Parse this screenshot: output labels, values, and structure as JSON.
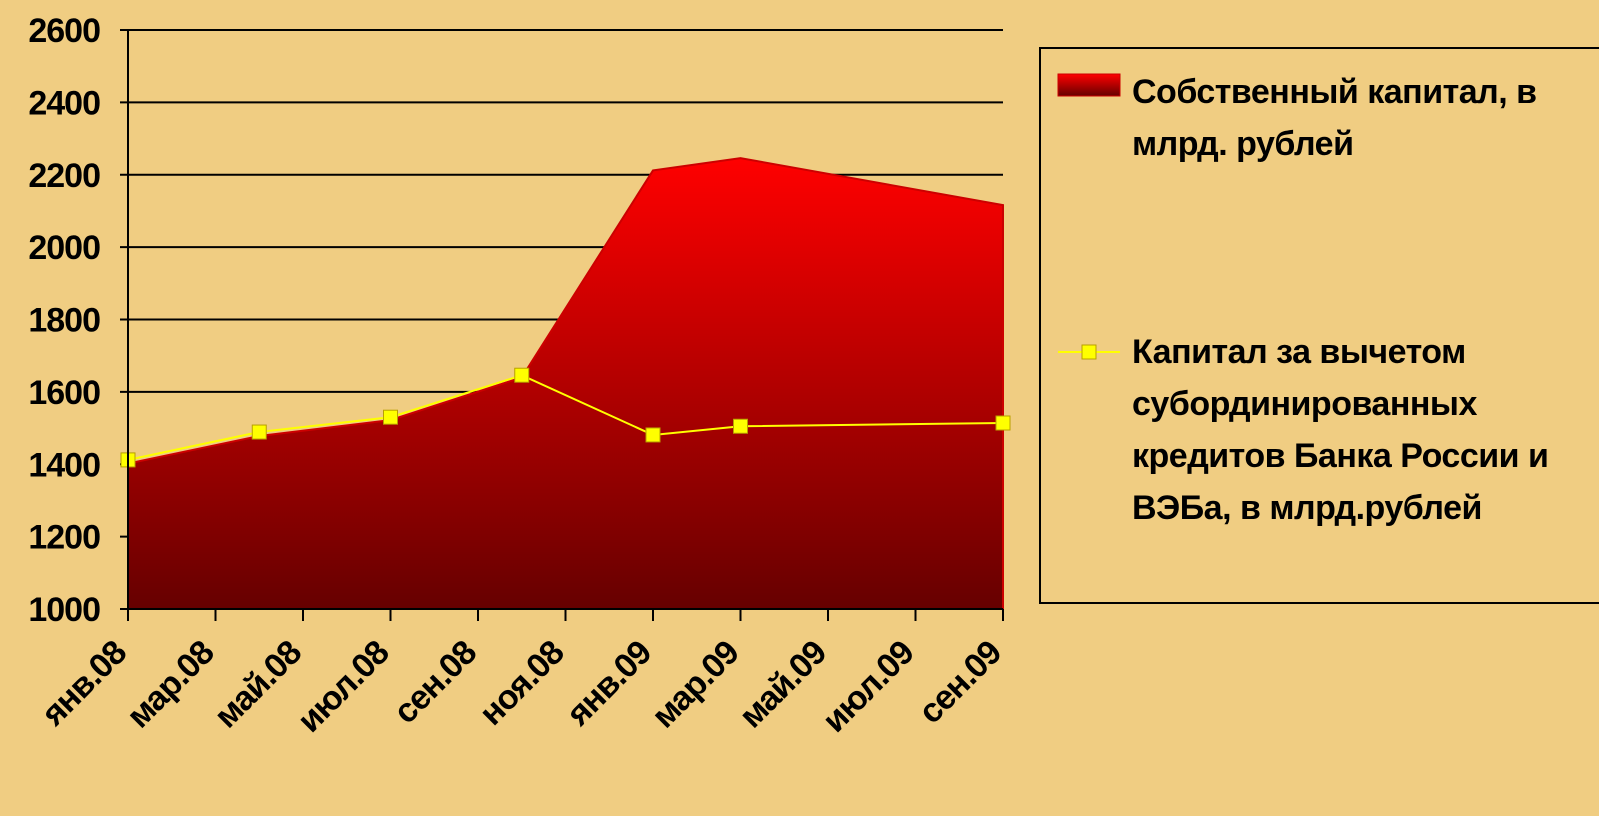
{
  "chart_data": {
    "type": "area-line",
    "x": [
      0,
      3,
      6,
      9,
      12,
      14,
      20
    ],
    "xlim": [
      0,
      20
    ],
    "xticks": [
      {
        "value": 0,
        "label": "янв.08"
      },
      {
        "value": 2,
        "label": "мар.08"
      },
      {
        "value": 4,
        "label": "май.08"
      },
      {
        "value": 6,
        "label": "июл.08"
      },
      {
        "value": 8,
        "label": "сен.08"
      },
      {
        "value": 10,
        "label": "ноя.08"
      },
      {
        "value": 12,
        "label": "янв.09"
      },
      {
        "value": 14,
        "label": "мар.09"
      },
      {
        "value": 16,
        "label": "май.09"
      },
      {
        "value": 18,
        "label": "июл.09"
      },
      {
        "value": 20,
        "label": "сен.09"
      }
    ],
    "ylim": [
      1000,
      2600
    ],
    "yticks": [
      1000,
      1200,
      1400,
      1600,
      1800,
      2000,
      2200,
      2400,
      2600
    ],
    "grid": true,
    "legend": "right",
    "series": [
      {
        "name": "Собственный капитал, в млрд. рублей",
        "type": "area",
        "color": "#ff0000",
        "values": [
          1402,
          1478,
          1522,
          1640,
          2212,
          2246,
          2116
        ]
      },
      {
        "name": "Капитал за вычетом субординированных кредитов Банка России и ВЭБа, в млрд.рублей",
        "type": "line",
        "color": "#ffff00",
        "values": [
          1412,
          1489,
          1530,
          1646,
          1481,
          1505,
          1514
        ]
      }
    ]
  }
}
